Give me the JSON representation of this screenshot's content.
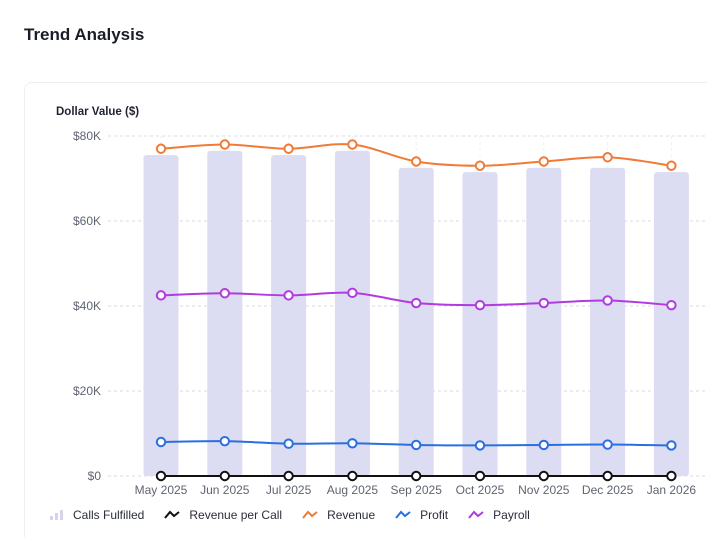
{
  "page": {
    "title": "Trend Analysis"
  },
  "chart_data": {
    "type": "bar+line",
    "ylabel": "Dollar Value ($)",
    "ylim": [
      0,
      80000
    ],
    "yticks": [
      0,
      20000,
      40000,
      60000,
      80000
    ],
    "ytick_labels": [
      "$0",
      "$20K",
      "$40K",
      "$60K",
      "$80K"
    ],
    "grid": true,
    "legend_position": "bottom-left",
    "categories": [
      "May 2025",
      "Jun 2025",
      "Jul 2025",
      "Aug 2025",
      "Sep 2025",
      "Oct 2025",
      "Nov 2025",
      "Dec 2025",
      "Jan 2026"
    ],
    "bars": {
      "name": "Calls Fulfilled",
      "color": "#dcdcf2",
      "values": [
        75500,
        76500,
        75500,
        76500,
        72500,
        71500,
        72500,
        72500,
        71500
      ]
    },
    "series": [
      {
        "name": "Revenue per Call",
        "color": "#111111",
        "values": [
          0,
          0,
          0,
          0,
          0,
          0,
          0,
          0,
          0
        ]
      },
      {
        "name": "Revenue",
        "color": "#f07a36",
        "values": [
          77000,
          78000,
          77000,
          78000,
          74000,
          73000,
          74000,
          75000,
          73000
        ]
      },
      {
        "name": "Profit",
        "color": "#2a6fe0",
        "values": [
          8000,
          8200,
          7600,
          7700,
          7300,
          7200,
          7300,
          7400,
          7200
        ]
      },
      {
        "name": "Payroll",
        "color": "#b23be0",
        "values": [
          42500,
          43000,
          42500,
          43100,
          40700,
          40200,
          40700,
          41300,
          40200
        ]
      }
    ]
  }
}
